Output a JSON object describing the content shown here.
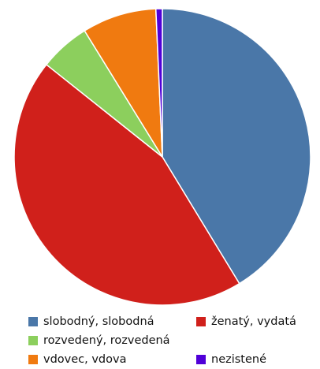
{
  "chart_data": {
    "type": "pie",
    "categories": [
      "slobodný, slobodná",
      "ženatý, vydatá",
      "rozvedený, rozvedená",
      "vdovec, vdova",
      "nezistené"
    ],
    "values": [
      41.3,
      44.4,
      5.5,
      8.1,
      0.7
    ],
    "colors": [
      "#4a77a8",
      "#d0201b",
      "#8ccf5d",
      "#f07a10",
      "#5000d8"
    ]
  }
}
